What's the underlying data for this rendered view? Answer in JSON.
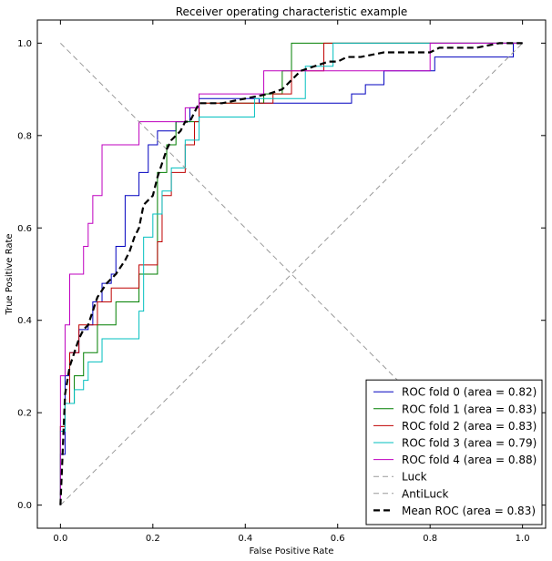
{
  "chart_data": {
    "type": "line",
    "title": "Receiver operating characteristic example",
    "xlabel": "False Positive Rate",
    "ylabel": "True Positive Rate",
    "xlim": [
      -0.05,
      1.05
    ],
    "ylim": [
      -0.05,
      1.05
    ],
    "xticks": [
      "0.0",
      "0.2",
      "0.4",
      "0.6",
      "0.8",
      "1.0"
    ],
    "yticks": [
      "0.0",
      "0.2",
      "0.4",
      "0.6",
      "0.8",
      "1.0"
    ],
    "grid": false,
    "legend_position": "lower-right",
    "series": [
      {
        "name": "ROC fold 0 (area = 0.82)",
        "color": "#0000bf",
        "style": "solid",
        "step": true,
        "x": [
          0.0,
          0.0,
          0.01,
          0.01,
          0.02,
          0.02,
          0.04,
          0.04,
          0.06,
          0.06,
          0.07,
          0.07,
          0.09,
          0.09,
          0.11,
          0.11,
          0.12,
          0.12,
          0.14,
          0.14,
          0.17,
          0.17,
          0.19,
          0.19,
          0.21,
          0.21,
          0.25,
          0.25,
          0.28,
          0.28,
          0.3,
          0.3,
          0.43,
          0.43,
          0.63,
          0.63,
          0.66,
          0.66,
          0.7,
          0.7,
          0.81,
          0.81,
          0.98,
          0.98,
          1.0
        ],
        "y": [
          0.0,
          0.11,
          0.11,
          0.28,
          0.28,
          0.33,
          0.33,
          0.38,
          0.38,
          0.39,
          0.39,
          0.44,
          0.44,
          0.48,
          0.48,
          0.5,
          0.5,
          0.56,
          0.56,
          0.67,
          0.67,
          0.72,
          0.72,
          0.78,
          0.78,
          0.81,
          0.81,
          0.83,
          0.83,
          0.86,
          0.86,
          0.88,
          0.88,
          0.87,
          0.87,
          0.89,
          0.89,
          0.91,
          0.91,
          0.94,
          0.94,
          0.97,
          0.97,
          1.0,
          1.0
        ]
      },
      {
        "name": "ROC fold 1 (area = 0.83)",
        "color": "#007f00",
        "style": "solid",
        "step": true,
        "x": [
          0.0,
          0.0,
          0.01,
          0.01,
          0.03,
          0.03,
          0.05,
          0.05,
          0.08,
          0.08,
          0.12,
          0.12,
          0.17,
          0.17,
          0.21,
          0.21,
          0.23,
          0.23,
          0.25,
          0.25,
          0.3,
          0.3,
          0.44,
          0.44,
          0.48,
          0.48,
          0.5,
          0.5,
          0.5,
          1.0
        ],
        "y": [
          0.0,
          0.17,
          0.17,
          0.22,
          0.22,
          0.28,
          0.28,
          0.33,
          0.33,
          0.39,
          0.39,
          0.44,
          0.44,
          0.5,
          0.5,
          0.72,
          0.72,
          0.78,
          0.78,
          0.83,
          0.83,
          0.87,
          0.87,
          0.89,
          0.89,
          0.94,
          0.94,
          1.0,
          1.0,
          1.0
        ]
      },
      {
        "name": "ROC fold 2 (area = 0.83)",
        "color": "#bf0000",
        "style": "solid",
        "step": true,
        "x": [
          0.0,
          0.0,
          0.01,
          0.01,
          0.02,
          0.02,
          0.04,
          0.04,
          0.06,
          0.06,
          0.08,
          0.08,
          0.11,
          0.11,
          0.14,
          0.14,
          0.17,
          0.17,
          0.21,
          0.21,
          0.22,
          0.22,
          0.24,
          0.24,
          0.27,
          0.27,
          0.29,
          0.29,
          0.3,
          0.3,
          0.46,
          0.46,
          0.5,
          0.5,
          0.57,
          0.57,
          1.0
        ],
        "y": [
          0.0,
          0.17,
          0.17,
          0.22,
          0.22,
          0.33,
          0.33,
          0.39,
          0.39,
          0.39,
          0.39,
          0.44,
          0.44,
          0.47,
          0.47,
          0.47,
          0.47,
          0.52,
          0.52,
          0.57,
          0.57,
          0.67,
          0.67,
          0.72,
          0.72,
          0.78,
          0.78,
          0.83,
          0.83,
          0.87,
          0.87,
          0.89,
          0.89,
          0.94,
          0.94,
          1.0,
          1.0
        ]
      },
      {
        "name": "ROC fold 3 (area = 0.79)",
        "color": "#00bfbf",
        "style": "solid",
        "step": true,
        "x": [
          0.0,
          0.0,
          0.01,
          0.01,
          0.03,
          0.03,
          0.05,
          0.05,
          0.06,
          0.06,
          0.09,
          0.09,
          0.17,
          0.17,
          0.18,
          0.18,
          0.2,
          0.2,
          0.22,
          0.22,
          0.24,
          0.24,
          0.27,
          0.27,
          0.3,
          0.3,
          0.42,
          0.42,
          0.53,
          0.53,
          0.59,
          0.59,
          1.0
        ],
        "y": [
          0.0,
          0.16,
          0.16,
          0.22,
          0.22,
          0.25,
          0.25,
          0.27,
          0.27,
          0.31,
          0.31,
          0.36,
          0.36,
          0.42,
          0.42,
          0.58,
          0.58,
          0.63,
          0.63,
          0.68,
          0.68,
          0.73,
          0.73,
          0.79,
          0.79,
          0.84,
          0.84,
          0.88,
          0.88,
          0.95,
          0.95,
          1.0,
          1.0
        ]
      },
      {
        "name": "ROC fold 4 (area = 0.88)",
        "color": "#bf00bf",
        "style": "solid",
        "step": true,
        "x": [
          0.0,
          0.0,
          0.01,
          0.01,
          0.02,
          0.02,
          0.05,
          0.05,
          0.06,
          0.06,
          0.07,
          0.07,
          0.09,
          0.09,
          0.17,
          0.17,
          0.24,
          0.24,
          0.27,
          0.27,
          0.29,
          0.29,
          0.3,
          0.3,
          0.44,
          0.44,
          0.59,
          0.59,
          0.8,
          0.8,
          1.0
        ],
        "y": [
          0.0,
          0.28,
          0.28,
          0.39,
          0.39,
          0.5,
          0.5,
          0.56,
          0.56,
          0.61,
          0.61,
          0.67,
          0.67,
          0.78,
          0.78,
          0.83,
          0.83,
          0.83,
          0.83,
          0.86,
          0.86,
          0.86,
          0.86,
          0.89,
          0.89,
          0.94,
          0.94,
          0.94,
          0.94,
          1.0,
          1.0
        ]
      },
      {
        "name": "Luck",
        "color": "#999999",
        "style": "dashed",
        "step": false,
        "x": [
          0.0,
          1.0
        ],
        "y": [
          0.0,
          1.0
        ]
      },
      {
        "name": "AntiLuck",
        "color": "#999999",
        "style": "dashed",
        "step": false,
        "x": [
          0.0,
          1.0
        ],
        "y": [
          1.0,
          0.0
        ]
      },
      {
        "name": "Mean ROC (area = 0.83)",
        "color": "#000000",
        "style": "dashed-bold",
        "step": false,
        "x": [
          0.0,
          0.01,
          0.02,
          0.03,
          0.04,
          0.05,
          0.06,
          0.07,
          0.08,
          0.1,
          0.12,
          0.14,
          0.15,
          0.16,
          0.17,
          0.18,
          0.19,
          0.2,
          0.21,
          0.22,
          0.23,
          0.24,
          0.25,
          0.26,
          0.27,
          0.28,
          0.29,
          0.3,
          0.35,
          0.4,
          0.45,
          0.48,
          0.5,
          0.52,
          0.55,
          0.58,
          0.6,
          0.62,
          0.65,
          0.7,
          0.8,
          0.82,
          0.9,
          0.95,
          0.97,
          1.0
        ],
        "y": [
          0.0,
          0.24,
          0.3,
          0.33,
          0.36,
          0.38,
          0.39,
          0.42,
          0.45,
          0.48,
          0.5,
          0.53,
          0.55,
          0.58,
          0.6,
          0.65,
          0.66,
          0.67,
          0.71,
          0.74,
          0.77,
          0.79,
          0.8,
          0.81,
          0.83,
          0.83,
          0.85,
          0.87,
          0.87,
          0.88,
          0.89,
          0.9,
          0.92,
          0.94,
          0.95,
          0.96,
          0.96,
          0.97,
          0.97,
          0.98,
          0.98,
          0.99,
          0.99,
          1.0,
          1.0,
          1.0
        ]
      }
    ]
  }
}
